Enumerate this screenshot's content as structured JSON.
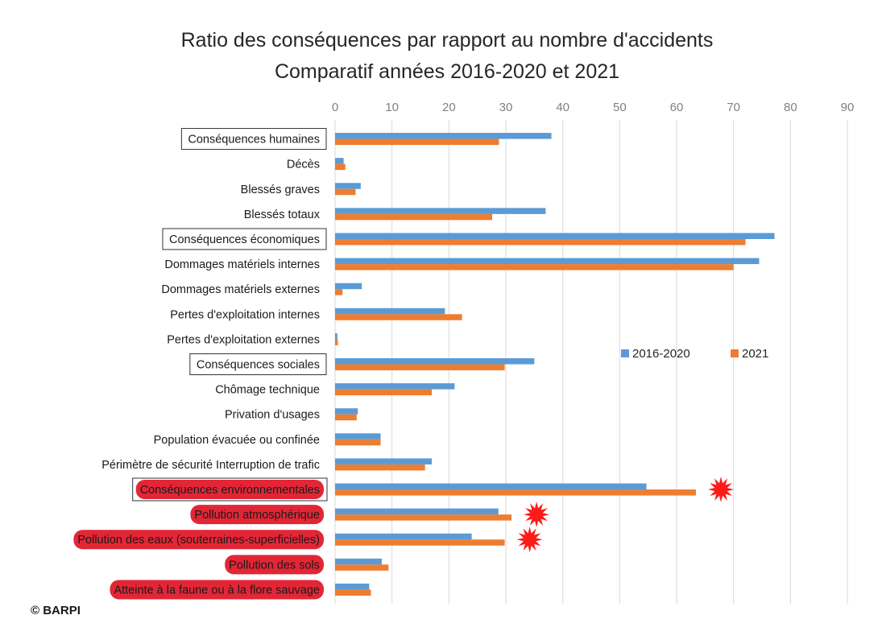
{
  "title_line1": "Ratio des conséquences par rapport au nombre d'accidents",
  "title_line2": "Comparatif années 2016-2020 et 2021",
  "copyright": "© BARPI",
  "colors": {
    "series1": "#5b9bd5",
    "series2": "#ed7d31",
    "highlight": "#e32636",
    "star": "#ff1a1a"
  },
  "chart_data": {
    "type": "bar",
    "orientation": "horizontal",
    "title": "Ratio des conséquences par rapport au nombre d'accidents — Comparatif années 2016-2020 et 2021",
    "xlim": [
      0,
      90
    ],
    "xticks": [
      0,
      10,
      20,
      30,
      40,
      50,
      60,
      70,
      80,
      90
    ],
    "grid": true,
    "legend_position": "right",
    "categories": [
      "Conséquences humaines",
      "Décès",
      "Blessés graves",
      "Blessés totaux",
      "Conséquences économiques",
      "Dommages matériels internes",
      "Dommages matériels externes",
      "Pertes d'exploitation internes",
      "Pertes d'exploitation externes",
      "Conséquences sociales",
      "Chômage technique",
      "Privation d'usages",
      "Population évacuée ou confinée",
      "Périmètre de sécurité Interruption de trafic",
      "Conséquences environnementales",
      "Pollution atmosphérique",
      "Pollution des eaux (souterraines-superficielles)",
      "Pollution des sols",
      "Atteinte à la faune ou à la flore sauvage"
    ],
    "category_style": [
      "box",
      "",
      "",
      "",
      "box",
      "",
      "",
      "",
      "",
      "box",
      "",
      "",
      "",
      "",
      "box-red",
      "red",
      "red",
      "red",
      "red"
    ],
    "series": [
      {
        "name": "2016-2020",
        "values": [
          38,
          1.5,
          4.5,
          37,
          77.2,
          74.5,
          4.7,
          19.3,
          0.4,
          35,
          21,
          4,
          8,
          17,
          54.7,
          28.7,
          24,
          8.2,
          6
        ]
      },
      {
        "name": "2021",
        "values": [
          28.8,
          1.8,
          3.6,
          27.6,
          72.1,
          70,
          1.3,
          22.3,
          0.5,
          29.8,
          17,
          3.8,
          8,
          15.8,
          63.4,
          31,
          29.8,
          9.4,
          6.3
        ]
      }
    ],
    "markers": [
      {
        "category": "Conséquences environnementales",
        "marker": "star"
      },
      {
        "category": "Pollution atmosphérique",
        "marker": "star"
      },
      {
        "category": "Pollution des eaux (souterraines-superficielles)",
        "marker": "star"
      }
    ]
  }
}
